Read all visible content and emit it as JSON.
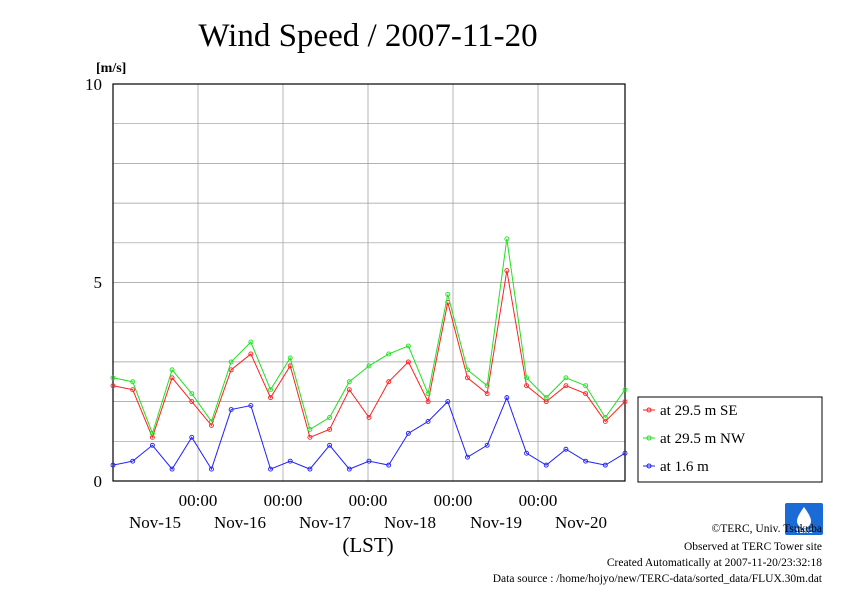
{
  "chart_data": {
    "type": "line",
    "title": "Wind Speed / 2007-11-20",
    "ylabel_unit": "[m/s]",
    "xlabel": "(LST)",
    "ylim": [
      0,
      10
    ],
    "y_ticks": [
      "0",
      "5",
      "10"
    ],
    "x_time_ticks": [
      "00:00",
      "00:00",
      "00:00",
      "00:00",
      "00:00"
    ],
    "x_day_labels": [
      "Nov-15",
      "Nov-16",
      "Nov-17",
      "Nov-18",
      "Nov-19",
      "Nov-20"
    ],
    "grid": true,
    "legend_position": "right",
    "x": [
      "Nov-14 12:00",
      "Nov-14 18:00",
      "Nov-15 00:00",
      "Nov-15 06:00",
      "Nov-15 12:00",
      "Nov-15 18:00",
      "Nov-16 00:00",
      "Nov-16 06:00",
      "Nov-16 12:00",
      "Nov-16 18:00",
      "Nov-17 00:00",
      "Nov-17 06:00",
      "Nov-17 12:00",
      "Nov-17 18:00",
      "Nov-18 00:00",
      "Nov-18 06:00",
      "Nov-18 12:00",
      "Nov-18 18:00",
      "Nov-19 00:00",
      "Nov-19 06:00",
      "Nov-19 12:00",
      "Nov-19 18:00",
      "Nov-20 00:00",
      "Nov-20 06:00",
      "Nov-20 12:00",
      "Nov-20 18:00",
      "Nov-21 00:00"
    ],
    "series": [
      {
        "name": "at 29.5 m SE",
        "color": "#ff2020",
        "values": [
          2.4,
          2.3,
          1.1,
          2.6,
          2.0,
          1.4,
          2.8,
          3.2,
          2.1,
          2.9,
          1.1,
          1.3,
          2.3,
          1.6,
          2.5,
          3.0,
          2.0,
          4.5,
          2.6,
          2.2,
          5.3,
          2.4,
          2.0,
          2.4,
          2.2,
          1.5,
          2.0
        ]
      },
      {
        "name": "at 29.5 m NW",
        "color": "#20e020",
        "values": [
          2.6,
          2.5,
          1.2,
          2.8,
          2.2,
          1.5,
          3.0,
          3.5,
          2.3,
          3.1,
          1.3,
          1.6,
          2.5,
          2.9,
          3.2,
          3.4,
          2.2,
          4.7,
          2.8,
          2.4,
          6.1,
          2.6,
          2.1,
          2.6,
          2.4,
          1.6,
          2.3
        ]
      },
      {
        "name": "at 1.6 m",
        "color": "#2020ff",
        "values": [
          0.4,
          0.5,
          0.9,
          0.3,
          1.1,
          0.3,
          1.8,
          1.9,
          0.3,
          0.5,
          0.3,
          0.9,
          0.3,
          0.5,
          0.4,
          1.2,
          1.5,
          2.0,
          0.6,
          0.9,
          2.1,
          0.7,
          0.4,
          0.8,
          0.5,
          0.4,
          0.7
        ]
      }
    ]
  },
  "credits": {
    "copyright": "©TERC, Univ. Tsukuba",
    "observed": "Observed at TERC Tower site",
    "created": "Created Automatically at 2007-11-20/23:32:18",
    "source": "Data source : /home/hojyo/new/TERC-data/sorted_data/FLUX.30m.dat"
  },
  "logo": {
    "label": "TERC"
  }
}
